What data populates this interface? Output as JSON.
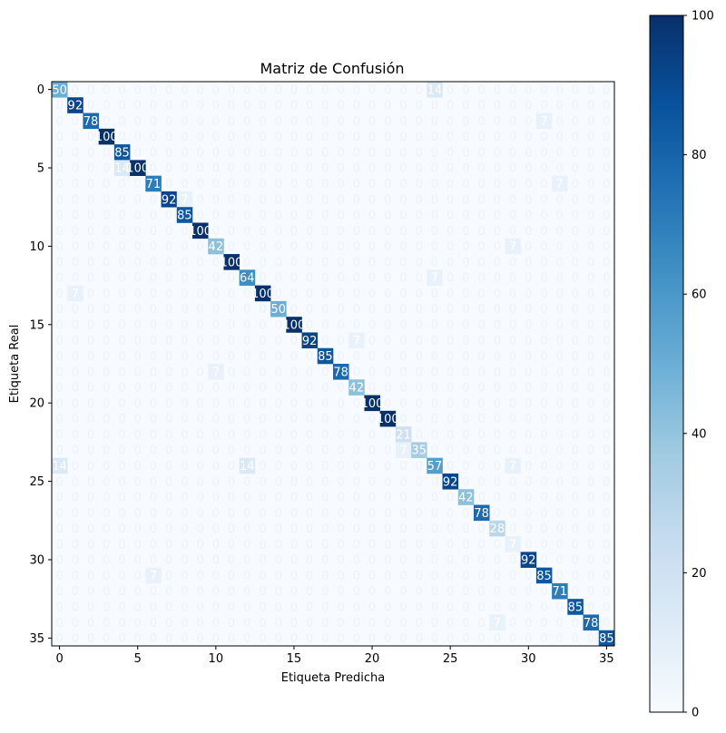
{
  "chart_data": {
    "type": "heatmap",
    "title": "Matriz de Confusión",
    "xlabel": "Etiqueta Predicha",
    "ylabel": "Etiqueta Real",
    "size": 36,
    "x_ticks": [
      0,
      5,
      10,
      15,
      20,
      25,
      30,
      35
    ],
    "y_ticks": [
      0,
      5,
      10,
      15,
      20,
      25,
      30,
      35
    ],
    "colorbar": {
      "min": 0,
      "max": 100,
      "ticks": [
        0,
        20,
        40,
        60,
        80,
        100
      ]
    },
    "colormap": "Blues",
    "colormap_stops": [
      "#f7fbff",
      "#deebf7",
      "#c6dbef",
      "#9ecae1",
      "#6baed6",
      "#4292c6",
      "#2171b5",
      "#08519c",
      "#08306b"
    ],
    "label_color_light": "#ffffff",
    "label_color_dark": "#000000",
    "diagonal": [
      50,
      92,
      78,
      100,
      85,
      100,
      71,
      92,
      85,
      100,
      42,
      100,
      64,
      100,
      50,
      100,
      92,
      85,
      78,
      42,
      100,
      100,
      21,
      35,
      57,
      92,
      42,
      78,
      28,
      7,
      92,
      85,
      71,
      85,
      78,
      85
    ],
    "off_diagonal": [
      {
        "row": 0,
        "col": 24,
        "value": 14
      },
      {
        "row": 2,
        "col": 31,
        "value": 7
      },
      {
        "row": 5,
        "col": 4,
        "value": 14
      },
      {
        "row": 6,
        "col": 32,
        "value": 7
      },
      {
        "row": 7,
        "col": 8,
        "value": 7
      },
      {
        "row": 10,
        "col": 29,
        "value": 7
      },
      {
        "row": 12,
        "col": 24,
        "value": 7
      },
      {
        "row": 13,
        "col": 1,
        "value": 7
      },
      {
        "row": 16,
        "col": 19,
        "value": 7
      },
      {
        "row": 18,
        "col": 10,
        "value": 7
      },
      {
        "row": 23,
        "col": 22,
        "value": 7
      },
      {
        "row": 24,
        "col": 0,
        "value": 14
      },
      {
        "row": 24,
        "col": 12,
        "value": 14
      },
      {
        "row": 24,
        "col": 29,
        "value": 7
      },
      {
        "row": 31,
        "col": 6,
        "value": 7
      },
      {
        "row": 34,
        "col": 28,
        "value": 7
      }
    ]
  }
}
